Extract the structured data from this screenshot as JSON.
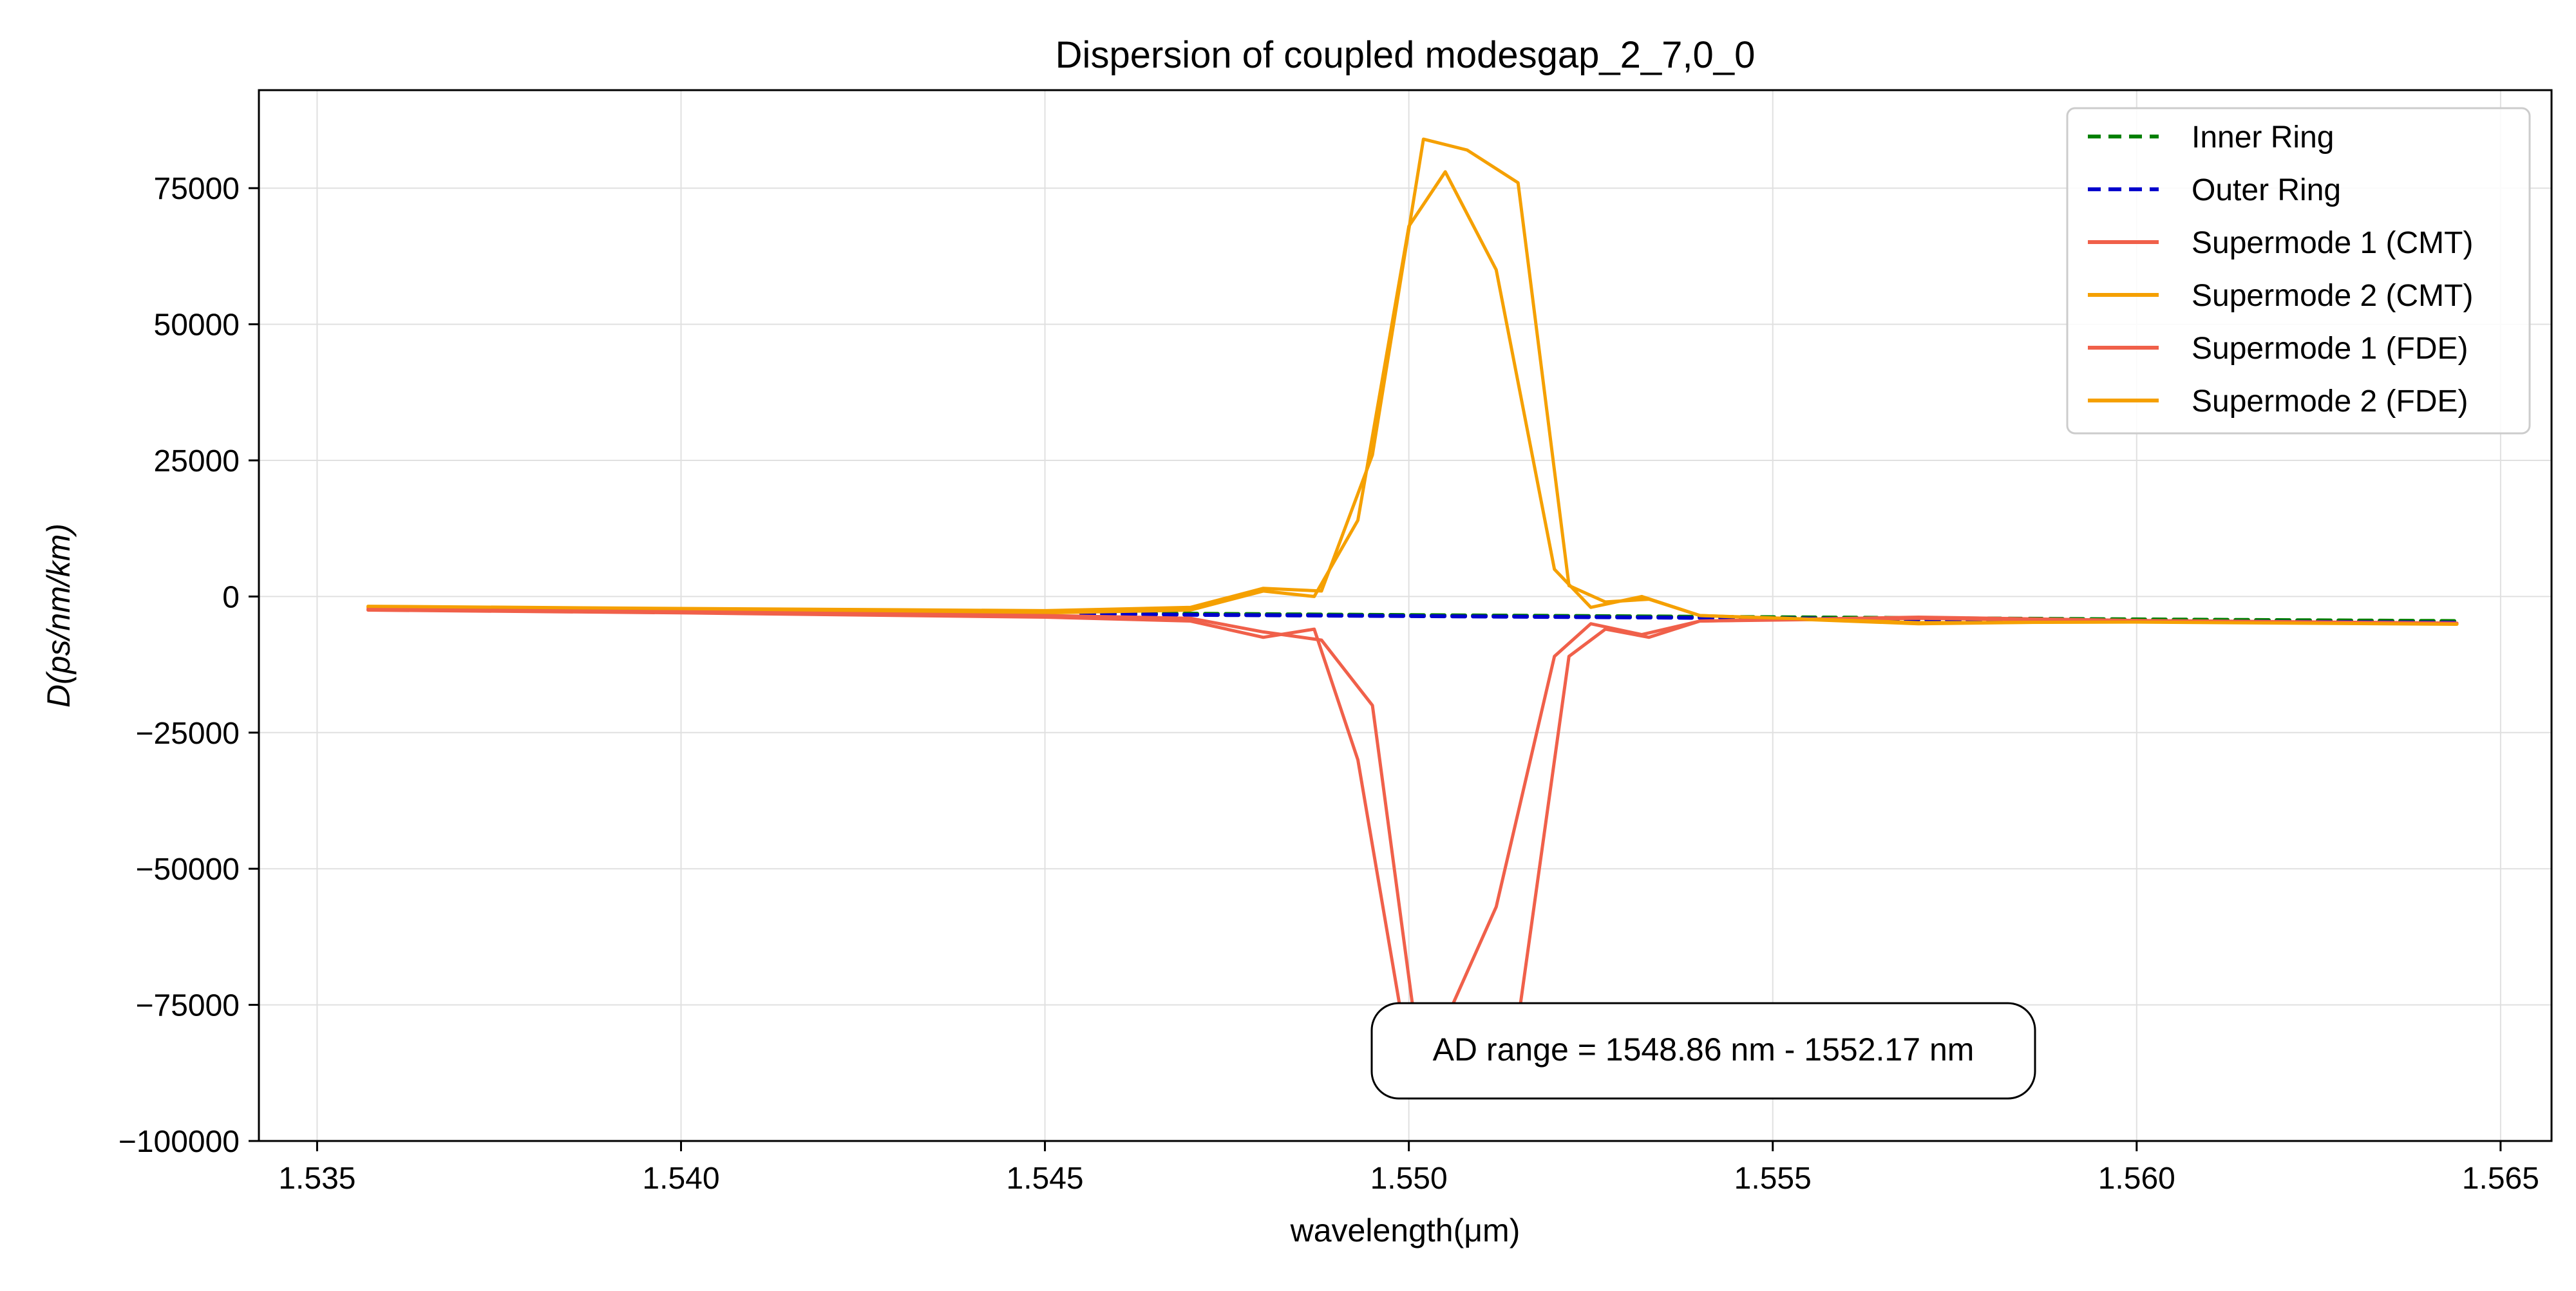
{
  "chart_data": {
    "type": "line",
    "title": "Dispersion of coupled modesgap_2_7,0_0",
    "xlabel": "wavelength(μm)",
    "ylabel": "D(ps/nm/km)",
    "xlim": [
      1.5342,
      1.5657
    ],
    "ylim": [
      -100000,
      93000
    ],
    "x_ticks": [
      1.535,
      1.54,
      1.545,
      1.55,
      1.555,
      1.56,
      1.565
    ],
    "x_tick_labels": [
      "1.535",
      "1.540",
      "1.545",
      "1.550",
      "1.555",
      "1.560",
      "1.565"
    ],
    "y_ticks": [
      -100000,
      -75000,
      -50000,
      -25000,
      0,
      25000,
      50000,
      75000
    ],
    "y_tick_labels": [
      "−100000",
      "−75000",
      "−50000",
      "−25000",
      "0",
      "25000",
      "50000",
      "75000"
    ],
    "grid": true,
    "legend_position": "top-right",
    "annotation": "AD range = 1548.86 nm - 1552.17 nm",
    "series": [
      {
        "name": "Inner Ring",
        "color": "#008000",
        "style": "dashed",
        "x": [
          1.5455,
          1.5475,
          1.55,
          1.5525,
          1.555,
          1.5575,
          1.56,
          1.5644
        ],
        "y": [
          -3000,
          -3200,
          -3400,
          -3600,
          -3800,
          -4000,
          -4200,
          -4500
        ]
      },
      {
        "name": "Outer Ring",
        "color": "#0000cc",
        "style": "dashed",
        "x": [
          1.5455,
          1.5475,
          1.55,
          1.5525,
          1.555,
          1.5575,
          1.56,
          1.5644
        ],
        "y": [
          -3200,
          -3400,
          -3600,
          -3800,
          -4000,
          -4300,
          -4500,
          -4800
        ]
      },
      {
        "name": "Supermode 1 (CMT)",
        "color": "#f0604a",
        "style": "solid",
        "x": [
          1.5357,
          1.54,
          1.545,
          1.547,
          1.548,
          1.5487,
          1.5493,
          1.55,
          1.5505,
          1.5512,
          1.552,
          1.5525,
          1.5532,
          1.554,
          1.557,
          1.56,
          1.5644
        ],
        "y": [
          -2500,
          -3000,
          -3800,
          -4500,
          -7500,
          -6000,
          -30000,
          -85000,
          -78000,
          -57000,
          -11000,
          -5000,
          -7000,
          -4500,
          -4000,
          -4500,
          -5000
        ]
      },
      {
        "name": "Supermode 2 (CMT)",
        "color": "#f5a000",
        "style": "solid",
        "x": [
          1.5357,
          1.54,
          1.545,
          1.547,
          1.548,
          1.5487,
          1.5493,
          1.55,
          1.5505,
          1.5512,
          1.552,
          1.5525,
          1.5532,
          1.554,
          1.557,
          1.56,
          1.5644
        ],
        "y": [
          -2000,
          -2500,
          -3000,
          -2500,
          1000,
          0,
          14000,
          68000,
          78000,
          60000,
          5000,
          -2000,
          0,
          -3500,
          -5000,
          -4500,
          -5000
        ]
      },
      {
        "name": "Supermode 1 (FDE)",
        "color": "#f0604a",
        "style": "solid",
        "x": [
          1.5357,
          1.54,
          1.545,
          1.547,
          1.548,
          1.5488,
          1.5495,
          1.5502,
          1.5508,
          1.5515,
          1.5522,
          1.5527,
          1.5533,
          1.554,
          1.557,
          1.56,
          1.5644
        ],
        "y": [
          -2300,
          -2800,
          -3500,
          -4000,
          -6500,
          -8000,
          -20000,
          -90000,
          -88000,
          -78000,
          -11000,
          -6000,
          -7500,
          -4500,
          -3800,
          -4400,
          -4900
        ]
      },
      {
        "name": "Supermode 2 (FDE)",
        "color": "#f5a000",
        "style": "solid",
        "x": [
          1.5357,
          1.54,
          1.545,
          1.547,
          1.548,
          1.5488,
          1.5495,
          1.5502,
          1.5508,
          1.5515,
          1.5522,
          1.5527,
          1.5533,
          1.554,
          1.557,
          1.56,
          1.5644
        ],
        "y": [
          -1800,
          -2200,
          -2600,
          -2000,
          1500,
          1000,
          26000,
          84000,
          82000,
          76000,
          2000,
          -1000,
          -500,
          -3500,
          -4800,
          -4700,
          -5100
        ]
      }
    ]
  }
}
